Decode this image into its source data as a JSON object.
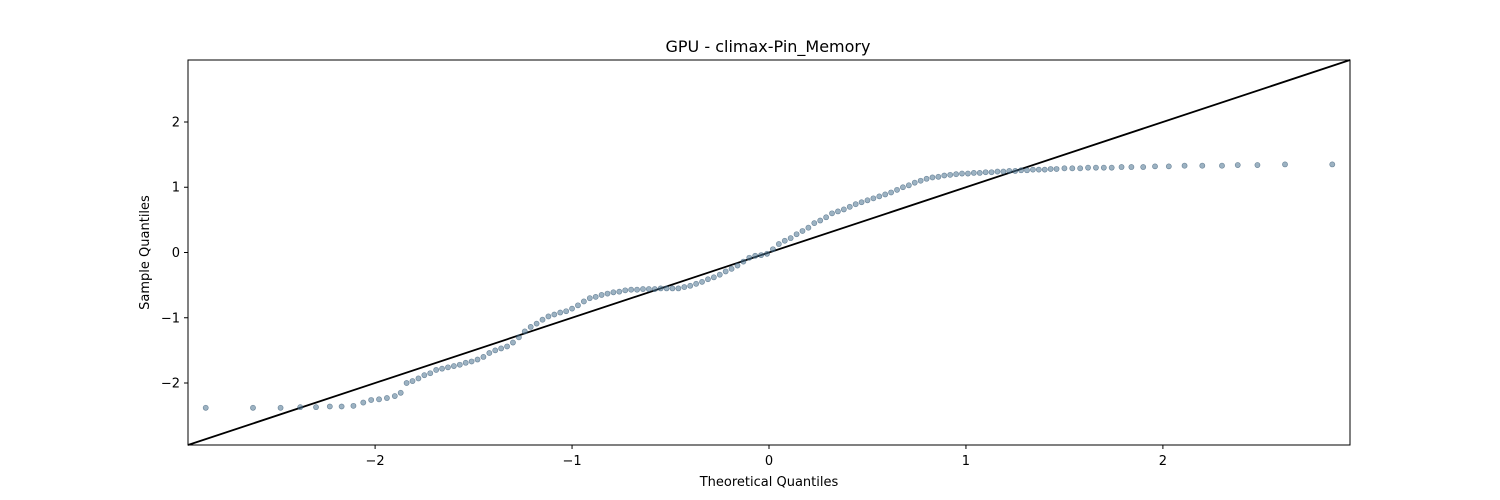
{
  "chart_data": {
    "type": "scatter",
    "title": "GPU - climax-Pin_Memory",
    "xlabel": "Theoretical Quantiles",
    "ylabel": "Sample Quantiles",
    "xlim": [
      -2.95,
      2.95
    ],
    "ylim": [
      -2.95,
      2.95
    ],
    "xticks": [
      -2,
      -1,
      0,
      1,
      2
    ],
    "yticks": [
      -2,
      -1,
      0,
      1,
      2
    ],
    "xtick_labels": [
      "−2",
      "−1",
      "0",
      "1",
      "2"
    ],
    "ytick_labels": [
      "−2",
      "−1",
      "0",
      "1",
      "2"
    ],
    "grid": false,
    "colors": {
      "points": "#4a7390",
      "point_edge": "#2b4f6b",
      "reference_line": "#000000"
    },
    "reference_line": {
      "from": [
        -2.95,
        -2.95
      ],
      "to": [
        2.95,
        2.95
      ]
    },
    "series": [
      {
        "x": [
          -2.86,
          -2.62,
          -2.48,
          -2.38,
          -2.3,
          -2.23,
          -2.17,
          -2.11,
          -2.06,
          -2.02,
          -1.98,
          -1.94,
          -1.9,
          -1.87,
          -1.84,
          -1.81,
          -1.78,
          -1.75,
          -1.72,
          -1.69,
          -1.66,
          -1.63,
          -1.6,
          -1.57,
          -1.54,
          -1.51,
          -1.48,
          -1.45,
          -1.42,
          -1.39,
          -1.36,
          -1.33,
          -1.3,
          -1.27,
          -1.24,
          -1.21,
          -1.18,
          -1.15,
          -1.12,
          -1.09,
          -1.06,
          -1.03,
          -1.0,
          -0.97,
          -0.94,
          -0.91,
          -0.88,
          -0.85,
          -0.82,
          -0.79,
          -0.76,
          -0.73,
          -0.7,
          -0.67,
          -0.64,
          -0.61,
          -0.58,
          -0.55,
          -0.52,
          -0.49,
          -0.46,
          -0.43,
          -0.4,
          -0.37,
          -0.34,
          -0.31,
          -0.28,
          -0.25,
          -0.22,
          -0.19,
          -0.16,
          -0.13,
          -0.1,
          -0.07,
          -0.04,
          -0.01,
          0.02,
          0.05,
          0.08,
          0.11,
          0.14,
          0.17,
          0.2,
          0.23,
          0.26,
          0.29,
          0.32,
          0.35,
          0.38,
          0.41,
          0.44,
          0.47,
          0.5,
          0.53,
          0.56,
          0.59,
          0.62,
          0.65,
          0.68,
          0.71,
          0.74,
          0.77,
          0.8,
          0.83,
          0.86,
          0.89,
          0.92,
          0.95,
          0.98,
          1.01,
          1.04,
          1.07,
          1.1,
          1.13,
          1.16,
          1.19,
          1.22,
          1.25,
          1.28,
          1.31,
          1.34,
          1.37,
          1.4,
          1.43,
          1.46,
          1.5,
          1.54,
          1.58,
          1.62,
          1.66,
          1.7,
          1.74,
          1.79,
          1.84,
          1.9,
          1.96,
          2.03,
          2.11,
          2.2,
          2.3,
          2.38,
          2.48,
          2.62,
          2.86
        ],
        "y": [
          -2.38,
          -2.38,
          -2.38,
          -2.37,
          -2.37,
          -2.36,
          -2.36,
          -2.35,
          -2.3,
          -2.26,
          -2.25,
          -2.23,
          -2.2,
          -2.15,
          -2.0,
          -1.97,
          -1.93,
          -1.88,
          -1.85,
          -1.8,
          -1.78,
          -1.76,
          -1.74,
          -1.72,
          -1.69,
          -1.67,
          -1.64,
          -1.6,
          -1.54,
          -1.5,
          -1.47,
          -1.44,
          -1.38,
          -1.3,
          -1.21,
          -1.14,
          -1.09,
          -1.03,
          -0.98,
          -0.95,
          -0.92,
          -0.9,
          -0.86,
          -0.81,
          -0.75,
          -0.7,
          -0.68,
          -0.65,
          -0.63,
          -0.61,
          -0.6,
          -0.58,
          -0.57,
          -0.57,
          -0.56,
          -0.56,
          -0.56,
          -0.55,
          -0.55,
          -0.55,
          -0.55,
          -0.53,
          -0.51,
          -0.48,
          -0.45,
          -0.41,
          -0.38,
          -0.34,
          -0.29,
          -0.25,
          -0.2,
          -0.14,
          -0.08,
          -0.05,
          -0.04,
          -0.02,
          0.05,
          0.13,
          0.18,
          0.22,
          0.28,
          0.33,
          0.38,
          0.45,
          0.49,
          0.54,
          0.6,
          0.63,
          0.66,
          0.7,
          0.74,
          0.77,
          0.8,
          0.83,
          0.86,
          0.89,
          0.92,
          0.96,
          1.0,
          1.03,
          1.07,
          1.1,
          1.13,
          1.15,
          1.16,
          1.18,
          1.19,
          1.2,
          1.21,
          1.21,
          1.22,
          1.22,
          1.23,
          1.23,
          1.24,
          1.24,
          1.25,
          1.25,
          1.26,
          1.26,
          1.27,
          1.27,
          1.27,
          1.28,
          1.28,
          1.29,
          1.29,
          1.29,
          1.3,
          1.3,
          1.3,
          1.3,
          1.31,
          1.31,
          1.31,
          1.32,
          1.32,
          1.33,
          1.33,
          1.33,
          1.34,
          1.34,
          1.35,
          1.35
        ]
      }
    ]
  }
}
